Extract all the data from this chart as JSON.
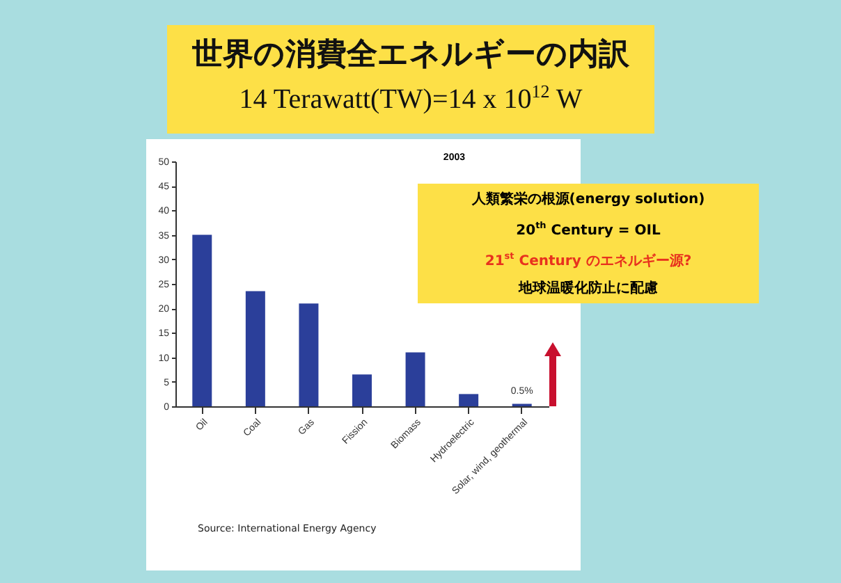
{
  "chart_data": {
    "type": "bar",
    "title": "世界の消費全エネルギーの内訳",
    "subtitle": "14 Terawatt(TW)=14 x 10$^{12}$ W",
    "categories": [
      "Oil",
      "Coal",
      "Gas",
      "Fission",
      "Biomass",
      "Hydroelectric",
      "Solar, wind, geothermal"
    ],
    "values": [
      35,
      23.5,
      21,
      6.5,
      11,
      2.5,
      0.5
    ],
    "color": "#2b3f9a",
    "ylim": [
      0,
      50
    ],
    "yticks": [
      0,
      5,
      10,
      15,
      20,
      25,
      30,
      35,
      40,
      45,
      50
    ],
    "grid": false,
    "annotations": [
      "2003",
      "人類繁栄の根源(energy solution)",
      "20$^{th}$ Century = OIL",
      "21$^{st}$ Century のエネルギー源?",
      "地球温暖化防止に配慮",
      {
        "text": "0.5%",
        "x": "Solar, wind, geothermal",
        "y": 0.5
      },
      "Source: International Energy Agency"
    ]
  }
}
